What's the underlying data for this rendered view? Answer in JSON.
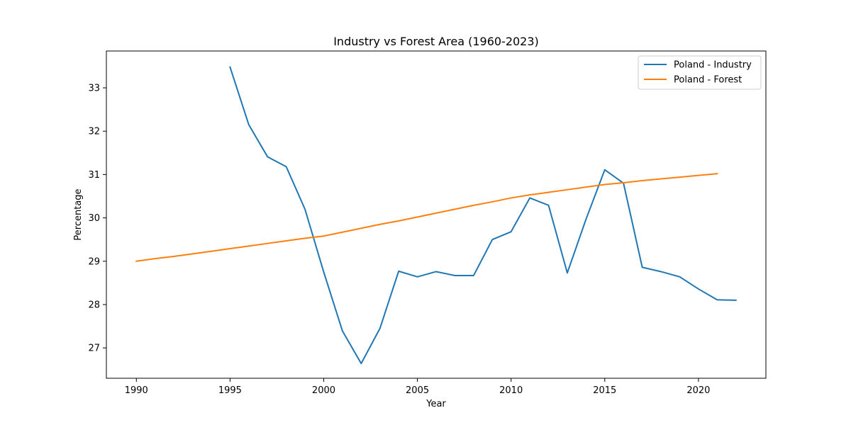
{
  "chart_data": {
    "type": "line",
    "title": "Industry vs Forest Area (1960-2023)",
    "xlabel": "Year",
    "ylabel": "Percentage",
    "xlim": [
      1988.4,
      2023.6
    ],
    "ylim": [
      26.3,
      33.85
    ],
    "x_ticks": [
      1990,
      1995,
      2000,
      2005,
      2010,
      2015,
      2020
    ],
    "y_ticks": [
      27,
      28,
      29,
      30,
      31,
      32,
      33
    ],
    "grid": false,
    "legend_position": "upper right",
    "series": [
      {
        "name": "Poland - Industry",
        "color": "#1f77b4",
        "x": [
          1995,
          1996,
          1997,
          1998,
          1999,
          2000,
          2001,
          2002,
          2003,
          2004,
          2005,
          2006,
          2007,
          2008,
          2009,
          2010,
          2011,
          2012,
          2013,
          2014,
          2015,
          2016,
          2017,
          2018,
          2019,
          2020,
          2021,
          2022
        ],
        "y": [
          33.48,
          32.15,
          31.41,
          31.18,
          30.2,
          28.75,
          27.39,
          26.64,
          27.45,
          28.77,
          28.64,
          28.76,
          28.67,
          28.67,
          29.5,
          29.68,
          30.46,
          30.29,
          28.73,
          29.97,
          31.11,
          30.8,
          28.86,
          28.76,
          28.64,
          28.36,
          28.11,
          28.1
        ]
      },
      {
        "name": "Poland - Forest",
        "color": "#ff7f0e",
        "x": [
          1990,
          1991,
          1992,
          1993,
          1994,
          1995,
          1996,
          1997,
          1998,
          1999,
          2000,
          2001,
          2002,
          2003,
          2004,
          2005,
          2006,
          2007,
          2008,
          2009,
          2010,
          2011,
          2012,
          2013,
          2014,
          2015,
          2016,
          2017,
          2018,
          2019,
          2020,
          2021
        ],
        "y": [
          29.0,
          29.06,
          29.11,
          29.17,
          29.23,
          29.29,
          29.35,
          29.41,
          29.47,
          29.53,
          29.58,
          29.67,
          29.76,
          29.85,
          29.93,
          30.02,
          30.11,
          30.2,
          30.29,
          30.37,
          30.46,
          30.53,
          30.59,
          30.65,
          30.71,
          30.77,
          30.81,
          30.86,
          30.9,
          30.94,
          30.98,
          31.02
        ]
      }
    ]
  }
}
